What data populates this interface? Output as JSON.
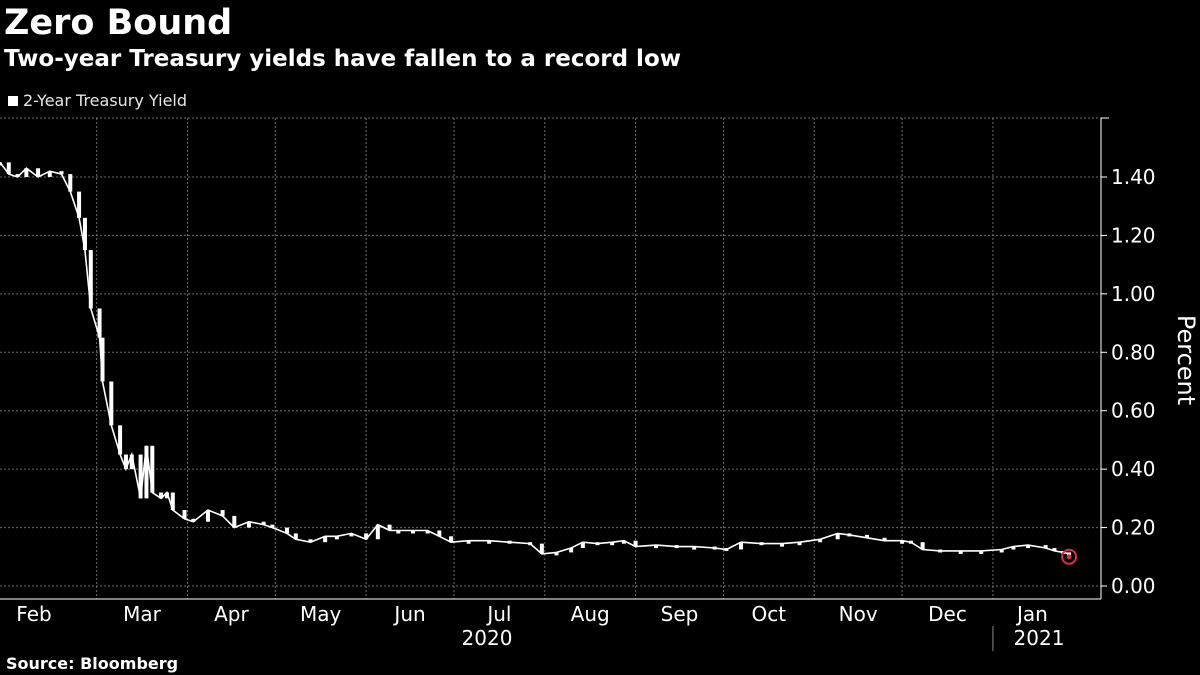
{
  "title": "Zero Bound",
  "subtitle": "Two-year Treasury yields have fallen to a record low",
  "source": "Source: Bloomberg",
  "legend_label": "2-Year Treasury Yield",
  "colors": {
    "background": "#000000",
    "series": "#ffffff",
    "grid": "#6e6e6e",
    "highlight": "#d9304a"
  },
  "chart_data": {
    "type": "line",
    "title": "Zero Bound",
    "subtitle": "Two-year Treasury yields have fallen to a record low",
    "ylabel": "Percent",
    "xlabel": "",
    "ylim": [
      0,
      1.6
    ],
    "yticks": [
      0.0,
      0.2,
      0.4,
      0.6,
      0.8,
      1.0,
      1.2,
      1.4
    ],
    "ytick_labels": [
      "0.00",
      "0.20",
      "0.40",
      "0.60",
      "0.80",
      "1.00",
      "1.20",
      "1.40"
    ],
    "x_axis_months": [
      "Feb",
      "Mar",
      "Apr",
      "May",
      "Jun",
      "Jul",
      "Aug",
      "Sep",
      "Oct",
      "Nov",
      "Dec",
      "Jan"
    ],
    "x_axis_years": [
      "2020",
      "2021"
    ],
    "xlim": [
      "2020-01-28",
      "2021-01-28"
    ],
    "grid": true,
    "legend_position": "top-left",
    "y_axis_side": "right",
    "series": [
      {
        "name": "2-Year Treasury Yield",
        "points": [
          [
            "2020-01-28",
            1.45
          ],
          [
            "2020-01-31",
            1.41
          ],
          [
            "2020-02-03",
            1.4
          ],
          [
            "2020-02-06",
            1.43
          ],
          [
            "2020-02-10",
            1.4
          ],
          [
            "2020-02-14",
            1.42
          ],
          [
            "2020-02-18",
            1.41
          ],
          [
            "2020-02-21",
            1.35
          ],
          [
            "2020-02-24",
            1.26
          ],
          [
            "2020-02-26",
            1.15
          ],
          [
            "2020-02-28",
            0.95
          ],
          [
            "2020-03-02",
            0.85
          ],
          [
            "2020-03-03",
            0.7
          ],
          [
            "2020-03-06",
            0.55
          ],
          [
            "2020-03-09",
            0.45
          ],
          [
            "2020-03-11",
            0.4
          ],
          [
            "2020-03-13",
            0.45
          ],
          [
            "2020-03-16",
            0.3
          ],
          [
            "2020-03-18",
            0.48
          ],
          [
            "2020-03-20",
            0.32
          ],
          [
            "2020-03-23",
            0.3
          ],
          [
            "2020-03-25",
            0.32
          ],
          [
            "2020-03-27",
            0.26
          ],
          [
            "2020-03-31",
            0.23
          ],
          [
            "2020-04-03",
            0.22
          ],
          [
            "2020-04-08",
            0.26
          ],
          [
            "2020-04-13",
            0.24
          ],
          [
            "2020-04-17",
            0.2
          ],
          [
            "2020-04-22",
            0.22
          ],
          [
            "2020-04-27",
            0.21
          ],
          [
            "2020-04-30",
            0.2
          ],
          [
            "2020-05-05",
            0.18
          ],
          [
            "2020-05-08",
            0.16
          ],
          [
            "2020-05-13",
            0.15
          ],
          [
            "2020-05-18",
            0.17
          ],
          [
            "2020-05-22",
            0.17
          ],
          [
            "2020-05-27",
            0.18
          ],
          [
            "2020-06-01",
            0.16
          ],
          [
            "2020-06-05",
            0.21
          ],
          [
            "2020-06-09",
            0.19
          ],
          [
            "2020-06-12",
            0.19
          ],
          [
            "2020-06-17",
            0.19
          ],
          [
            "2020-06-22",
            0.19
          ],
          [
            "2020-06-26",
            0.17
          ],
          [
            "2020-06-30",
            0.15
          ],
          [
            "2020-07-06",
            0.155
          ],
          [
            "2020-07-13",
            0.155
          ],
          [
            "2020-07-20",
            0.15
          ],
          [
            "2020-07-27",
            0.145
          ],
          [
            "2020-07-31",
            0.11
          ],
          [
            "2020-08-05",
            0.115
          ],
          [
            "2020-08-10",
            0.13
          ],
          [
            "2020-08-14",
            0.15
          ],
          [
            "2020-08-19",
            0.145
          ],
          [
            "2020-08-24",
            0.15
          ],
          [
            "2020-08-28",
            0.155
          ],
          [
            "2020-09-01",
            0.135
          ],
          [
            "2020-09-08",
            0.14
          ],
          [
            "2020-09-15",
            0.135
          ],
          [
            "2020-09-21",
            0.135
          ],
          [
            "2020-09-28",
            0.13
          ],
          [
            "2020-10-02",
            0.125
          ],
          [
            "2020-10-07",
            0.15
          ],
          [
            "2020-10-14",
            0.145
          ],
          [
            "2020-10-21",
            0.145
          ],
          [
            "2020-10-27",
            0.15
          ],
          [
            "2020-11-03",
            0.16
          ],
          [
            "2020-11-09",
            0.18
          ],
          [
            "2020-11-13",
            0.175
          ],
          [
            "2020-11-19",
            0.165
          ],
          [
            "2020-11-25",
            0.155
          ],
          [
            "2020-12-01",
            0.155
          ],
          [
            "2020-12-04",
            0.15
          ],
          [
            "2020-12-08",
            0.125
          ],
          [
            "2020-12-14",
            0.12
          ],
          [
            "2020-12-21",
            0.12
          ],
          [
            "2020-12-28",
            0.12
          ],
          [
            "2021-01-04",
            0.125
          ],
          [
            "2021-01-08",
            0.135
          ],
          [
            "2021-01-13",
            0.14
          ],
          [
            "2021-01-19",
            0.13
          ],
          [
            "2021-01-22",
            0.12
          ],
          [
            "2021-01-25",
            0.115
          ],
          [
            "2021-01-27",
            0.11
          ]
        ]
      }
    ],
    "annotations": [
      {
        "type": "circle-marker",
        "date": "2021-01-27",
        "value": 0.1,
        "note": "record low"
      }
    ]
  }
}
